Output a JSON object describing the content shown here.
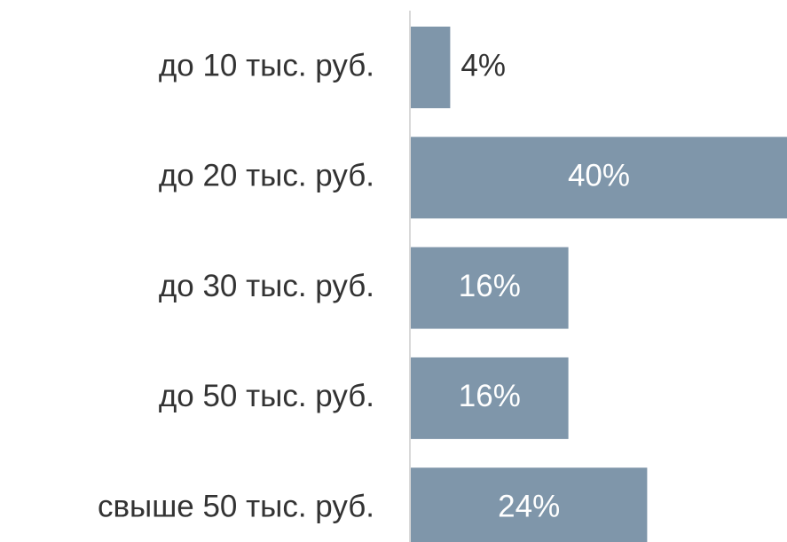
{
  "chart_data": {
    "type": "barh",
    "categories": [
      "до 10 тыс. руб.",
      "до 20 тыс. руб.",
      "до 30 тыс. руб.",
      "до 50 тыс. руб.",
      "свыше 50 тыс. руб."
    ],
    "values": [
      4,
      40,
      16,
      16,
      24
    ],
    "value_labels": [
      "4%",
      "40%",
      "16%",
      "16%",
      "24%"
    ],
    "color": "#7f96aa"
  }
}
